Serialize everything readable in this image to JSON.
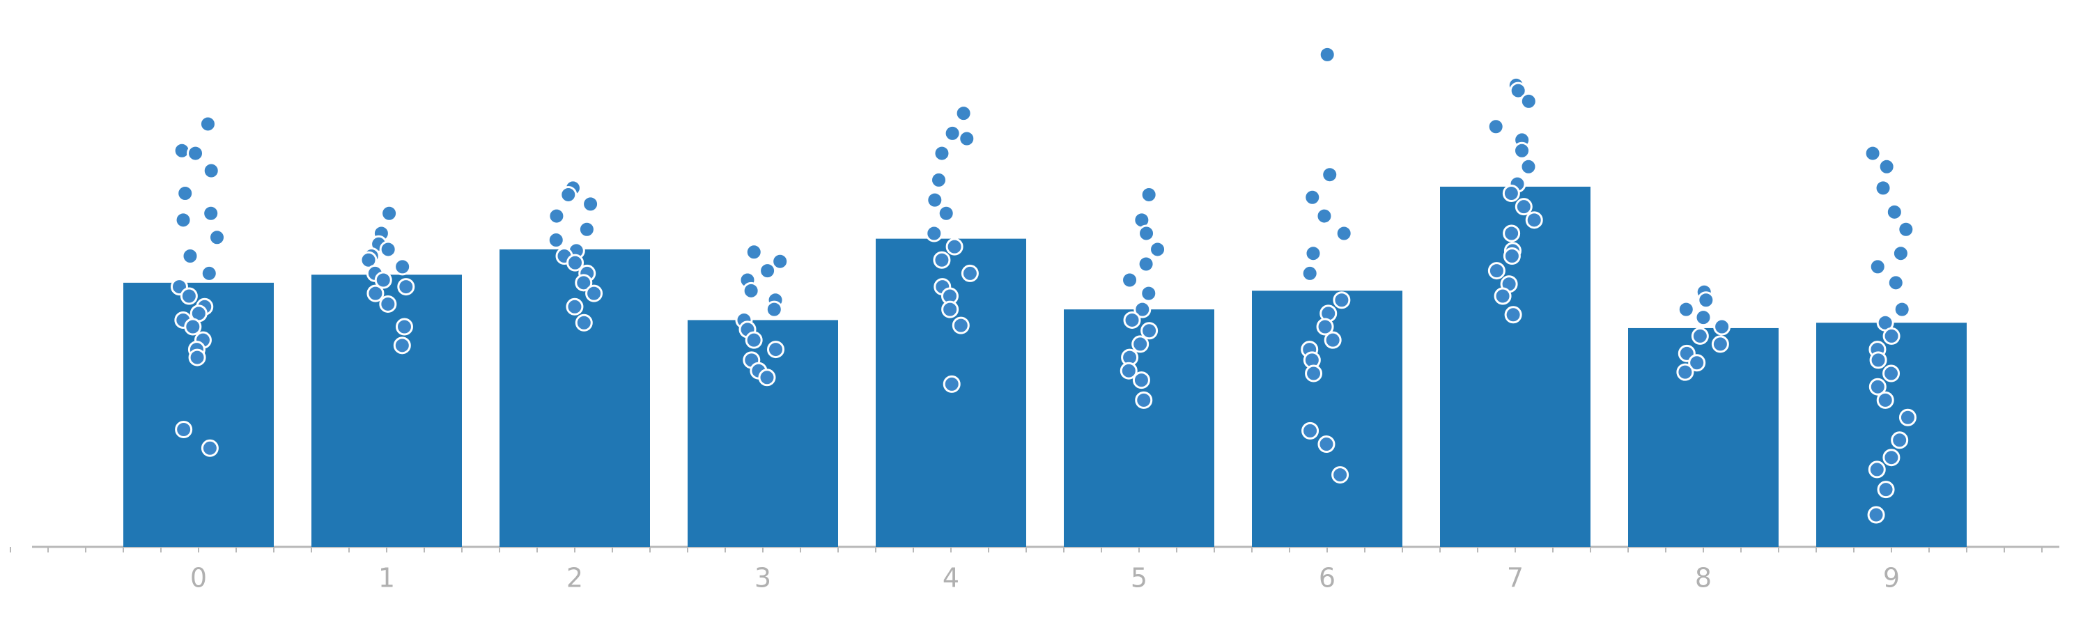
{
  "chart_data": {
    "type": "bar",
    "categories": [
      "0",
      "1",
      "2",
      "3",
      "4",
      "5",
      "6",
      "7",
      "8",
      "9"
    ],
    "values": [
      198,
      204,
      223,
      170,
      231,
      178,
      192,
      270,
      164,
      168
    ],
    "color": "#2077b4",
    "point_color": "#3b86c8",
    "ylim": [
      0,
      400
    ],
    "points": [
      [
        317,
        297,
        295,
        282,
        265,
        250,
        245,
        232,
        218,
        205,
        195,
        188,
        180,
        175,
        170,
        165,
        155,
        148,
        142,
        88,
        74
      ],
      [
        250,
        235,
        227,
        223,
        218,
        215,
        210,
        205,
        200,
        195,
        190,
        182,
        165,
        151
      ],
      [
        269,
        264,
        257,
        248,
        238,
        230,
        222,
        218,
        213,
        205,
        198,
        190,
        180,
        168
      ],
      [
        221,
        214,
        207,
        200,
        192,
        185,
        178,
        170,
        163,
        155,
        148,
        140,
        132,
        127
      ],
      [
        325,
        310,
        306,
        295,
        275,
        260,
        250,
        235,
        225,
        215,
        205,
        195,
        188,
        178,
        166,
        122
      ],
      [
        264,
        245,
        235,
        223,
        212,
        200,
        190,
        178,
        170,
        162,
        152,
        142,
        132,
        125,
        110
      ],
      [
        369,
        279,
        262,
        248,
        235,
        220,
        205,
        185,
        175,
        165,
        155,
        148,
        140,
        130,
        87,
        77,
        54
      ],
      [
        346,
        342,
        334,
        315,
        305,
        297,
        285,
        272,
        265,
        255,
        245,
        235,
        222,
        218,
        207,
        197,
        188,
        174
      ],
      [
        191,
        185,
        178,
        172,
        165,
        158,
        152,
        145,
        138,
        131
      ],
      [
        295,
        285,
        269,
        251,
        238,
        220,
        210,
        198,
        178,
        168,
        158,
        148,
        140,
        130,
        120,
        110,
        97,
        80,
        67,
        58,
        43,
        24
      ]
    ]
  }
}
